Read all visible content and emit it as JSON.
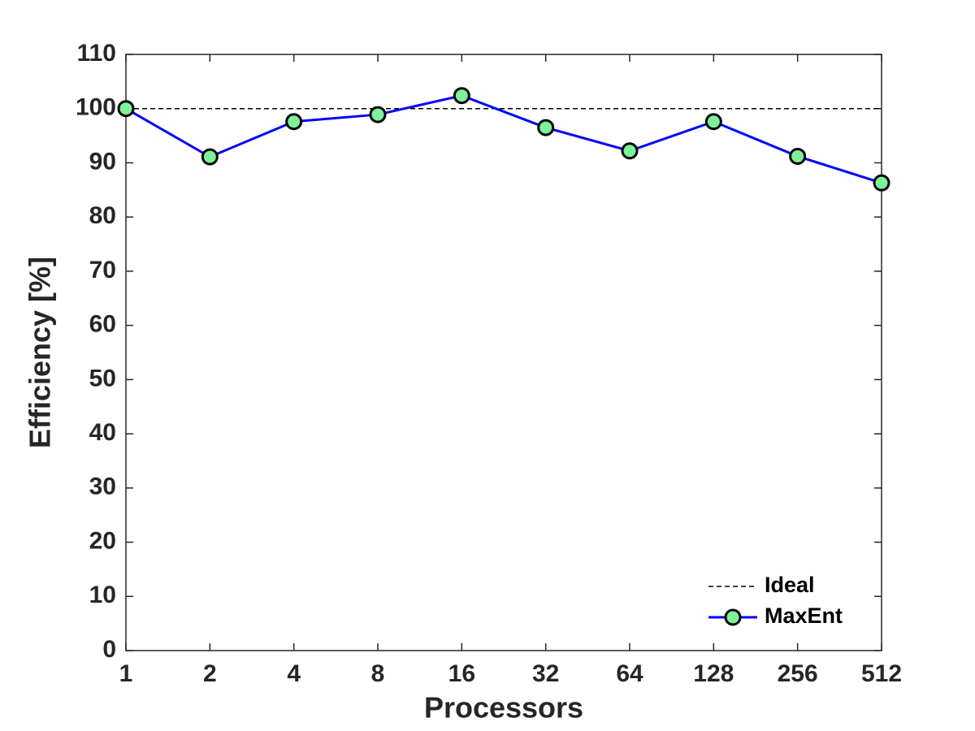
{
  "chart_data": {
    "type": "line",
    "xlabel": "Processors",
    "ylabel": "Efficiency [%]",
    "x": [
      1,
      2,
      4,
      8,
      16,
      32,
      64,
      128,
      256,
      512
    ],
    "xscale": "log2",
    "series": [
      {
        "name": "Ideal",
        "color": "#000000",
        "dash": true,
        "marker": false,
        "values": [
          100,
          100,
          100,
          100,
          100,
          100,
          100,
          100,
          100,
          100
        ]
      },
      {
        "name": "MaxEnt",
        "color": "#0000ff",
        "dash": false,
        "marker": true,
        "marker_color": "#7ef29a",
        "values": [
          100,
          91.1,
          97.6,
          98.9,
          102.4,
          96.5,
          92.2,
          97.6,
          91.2,
          86.3
        ]
      }
    ],
    "xlim": [
      1,
      512
    ],
    "xticks": [
      1,
      2,
      4,
      8,
      16,
      32,
      64,
      128,
      256,
      512
    ],
    "ylim": [
      0,
      110
    ],
    "yticks": [
      0,
      10,
      20,
      30,
      40,
      50,
      60,
      70,
      80,
      90,
      100,
      110
    ],
    "legend": "lower right"
  }
}
